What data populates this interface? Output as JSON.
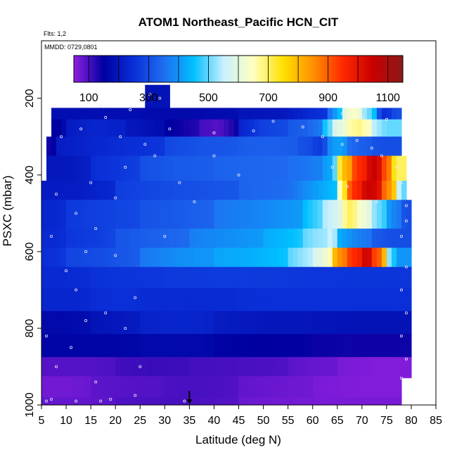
{
  "chart_data": {
    "type": "heatmap",
    "title": "ATOM1 Northeast_Pacific HCN_CIT",
    "flights_note": "Flts: 1,2",
    "date_note": "MMDD: 0729,0801",
    "xlabel": "Latitude (deg N)",
    "ylabel": "PSXC (mbar)",
    "xlim": [
      5,
      85
    ],
    "ylim": [
      1000,
      50
    ],
    "y_reversed": true,
    "x_ticks": [
      5,
      10,
      15,
      20,
      25,
      30,
      35,
      40,
      45,
      50,
      55,
      60,
      65,
      70,
      75,
      80,
      85
    ],
    "y_ticks": [
      200,
      400,
      600,
      800,
      1000
    ],
    "colorbar": {
      "min": 50,
      "max": 1150,
      "ticks": [
        100,
        300,
        500,
        700,
        900,
        1100
      ],
      "stops": [
        "#8e1fe0",
        "#0000a0",
        "#0a2fd8",
        "#1f6cf0",
        "#00bfff",
        "#c8f0ff",
        "#ffffc0",
        "#ffe000",
        "#ff9000",
        "#ff2800",
        "#c80000",
        "#8b1a1a"
      ]
    },
    "marker": {
      "latitude": 35,
      "label": "arrow"
    },
    "grid": false,
    "legend_position": "top",
    "layers": [
      {
        "p_top": 165,
        "p_bot": 230,
        "segments": [
          [
            26,
            31,
            190
          ]
        ]
      },
      {
        "p_top": 225,
        "p_bot": 265,
        "segments": [
          [
            7,
            25,
            180
          ],
          [
            25,
            45,
            170
          ],
          [
            45,
            63,
            200
          ],
          [
            63,
            66,
            400
          ],
          [
            66,
            70,
            650
          ],
          [
            70,
            73,
            500
          ],
          [
            73,
            76,
            250
          ],
          [
            76,
            78,
            300
          ]
        ]
      },
      {
        "p_top": 255,
        "p_bot": 305,
        "segments": [
          [
            7,
            10,
            150
          ],
          [
            10,
            22,
            230
          ],
          [
            22,
            30,
            190
          ],
          [
            30,
            37,
            140
          ],
          [
            37,
            45,
            90
          ],
          [
            45,
            55,
            280
          ],
          [
            55,
            62,
            330
          ],
          [
            62,
            64,
            480
          ],
          [
            64,
            67,
            600
          ],
          [
            67,
            72,
            680
          ],
          [
            72,
            78,
            500
          ]
        ]
      },
      {
        "p_top": 300,
        "p_bot": 355,
        "segments": [
          [
            6,
            8,
            140
          ],
          [
            8,
            30,
            240
          ],
          [
            30,
            45,
            310
          ],
          [
            45,
            57,
            330
          ],
          [
            57,
            60,
            300
          ],
          [
            60,
            63,
            270
          ],
          [
            63,
            67,
            420
          ],
          [
            67,
            72,
            330
          ],
          [
            72,
            78,
            300
          ]
        ]
      },
      {
        "p_top": 350,
        "p_bot": 420,
        "segments": [
          [
            6,
            15,
            200
          ],
          [
            15,
            25,
            260
          ],
          [
            25,
            40,
            320
          ],
          [
            40,
            55,
            340
          ],
          [
            55,
            62,
            360
          ],
          [
            62,
            65,
            420
          ],
          [
            65,
            68,
            800
          ],
          [
            68,
            71,
            950
          ],
          [
            71,
            74,
            1050
          ],
          [
            74,
            76,
            900
          ],
          [
            76,
            79,
            700
          ]
        ]
      },
      {
        "p_top": 415,
        "p_bot": 470,
        "segments": [
          [
            5,
            20,
            210
          ],
          [
            20,
            45,
            300
          ],
          [
            45,
            65,
            350
          ],
          [
            65,
            67,
            700
          ],
          [
            67,
            70,
            950
          ],
          [
            70,
            74,
            1050
          ],
          [
            74,
            77,
            850
          ],
          [
            77,
            79,
            500
          ]
        ]
      },
      {
        "p_top": 465,
        "p_bot": 545,
        "segments": [
          [
            5,
            10,
            230
          ],
          [
            10,
            25,
            280
          ],
          [
            25,
            40,
            320
          ],
          [
            40,
            58,
            380
          ],
          [
            58,
            62,
            470
          ],
          [
            62,
            66,
            560
          ],
          [
            66,
            69,
            700
          ],
          [
            69,
            72,
            620
          ],
          [
            72,
            75,
            500
          ],
          [
            75,
            78,
            380
          ],
          [
            78,
            80,
            300
          ]
        ]
      },
      {
        "p_top": 540,
        "p_bot": 595,
        "segments": [
          [
            5,
            10,
            240
          ],
          [
            10,
            20,
            270
          ],
          [
            20,
            35,
            330
          ],
          [
            35,
            50,
            390
          ],
          [
            50,
            58,
            440
          ],
          [
            58,
            63,
            520
          ],
          [
            63,
            65,
            560
          ],
          [
            65,
            72,
            380
          ],
          [
            72,
            80,
            300
          ]
        ]
      },
      {
        "p_top": 590,
        "p_bot": 645,
        "segments": [
          [
            5,
            10,
            250
          ],
          [
            10,
            25,
            300
          ],
          [
            25,
            40,
            390
          ],
          [
            40,
            55,
            430
          ],
          [
            55,
            60,
            520
          ],
          [
            60,
            64,
            600
          ],
          [
            64,
            67,
            850
          ],
          [
            67,
            70,
            950
          ],
          [
            70,
            72,
            1050
          ],
          [
            72,
            75,
            900
          ],
          [
            75,
            80,
            400
          ]
        ]
      },
      {
        "p_top": 640,
        "p_bot": 700,
        "segments": [
          [
            5,
            15,
            240
          ],
          [
            15,
            30,
            260
          ],
          [
            30,
            55,
            270
          ],
          [
            55,
            80,
            260
          ]
        ]
      },
      {
        "p_top": 695,
        "p_bot": 760,
        "segments": [
          [
            5,
            15,
            230
          ],
          [
            15,
            25,
            250
          ],
          [
            25,
            45,
            240
          ],
          [
            45,
            80,
            250
          ]
        ]
      },
      {
        "p_top": 755,
        "p_bot": 820,
        "segments": [
          [
            5,
            15,
            170
          ],
          [
            15,
            25,
            200
          ],
          [
            25,
            40,
            230
          ],
          [
            40,
            60,
            200
          ],
          [
            60,
            80,
            190
          ]
        ]
      },
      {
        "p_top": 815,
        "p_bot": 880,
        "segments": [
          [
            5,
            25,
            160
          ],
          [
            25,
            40,
            170
          ],
          [
            40,
            60,
            150
          ],
          [
            60,
            80,
            140
          ]
        ]
      },
      {
        "p_top": 875,
        "p_bot": 930,
        "segments": [
          [
            5,
            20,
            90
          ],
          [
            20,
            35,
            110
          ],
          [
            35,
            55,
            100
          ],
          [
            55,
            65,
            80
          ],
          [
            65,
            80,
            60
          ]
        ]
      },
      {
        "p_top": 925,
        "p_bot": 985,
        "segments": [
          [
            5,
            15,
            70
          ],
          [
            15,
            30,
            90
          ],
          [
            30,
            45,
            100
          ],
          [
            45,
            60,
            75
          ],
          [
            60,
            78,
            60
          ]
        ]
      },
      {
        "p_top": 980,
        "p_bot": 1000,
        "segments": [
          [
            5,
            20,
            80
          ],
          [
            20,
            45,
            100
          ],
          [
            45,
            78,
            65
          ]
        ]
      }
    ],
    "observations": [
      [
        6,
        990
      ],
      [
        7,
        985
      ],
      [
        12,
        990
      ],
      [
        17,
        990
      ],
      [
        19,
        985
      ],
      [
        24,
        975
      ],
      [
        34,
        990
      ],
      [
        6,
        820
      ],
      [
        11,
        850
      ],
      [
        14,
        780
      ],
      [
        18,
        760
      ],
      [
        22,
        800
      ],
      [
        25,
        900
      ],
      [
        10,
        650
      ],
      [
        14,
        600
      ],
      [
        8,
        450
      ],
      [
        12,
        500
      ],
      [
        15,
        420
      ],
      [
        20,
        460
      ],
      [
        22,
        380
      ],
      [
        28,
        350
      ],
      [
        33,
        420
      ],
      [
        36,
        470
      ],
      [
        9,
        300
      ],
      [
        13,
        280
      ],
      [
        18,
        250
      ],
      [
        21,
        300
      ],
      [
        26,
        320
      ],
      [
        31,
        280
      ],
      [
        40,
        290
      ],
      [
        48,
        285
      ],
      [
        52,
        260
      ],
      [
        58,
        275
      ],
      [
        62,
        300
      ],
      [
        66,
        320
      ],
      [
        69,
        310
      ],
      [
        72,
        330
      ],
      [
        74,
        350
      ],
      [
        77,
        380
      ],
      [
        78,
        420
      ],
      [
        79,
        480
      ],
      [
        79,
        520
      ],
      [
        78,
        560
      ],
      [
        79,
        640
      ],
      [
        78,
        700
      ],
      [
        79,
        760
      ],
      [
        78,
        820
      ],
      [
        79,
        880
      ],
      [
        78,
        930
      ],
      [
        27,
        190
      ],
      [
        29,
        200
      ],
      [
        17,
        220
      ],
      [
        23,
        230
      ],
      [
        66,
        240
      ],
      [
        70,
        250
      ],
      [
        75,
        255
      ],
      [
        64,
        380
      ],
      [
        67,
        430
      ],
      [
        73,
        470
      ],
      [
        7,
        560
      ],
      [
        16,
        540
      ],
      [
        20,
        610
      ],
      [
        30,
        560
      ],
      [
        12,
        700
      ],
      [
        24,
        720
      ],
      [
        8,
        900
      ],
      [
        16,
        940
      ],
      [
        40,
        350
      ],
      [
        45,
        400
      ]
    ]
  }
}
